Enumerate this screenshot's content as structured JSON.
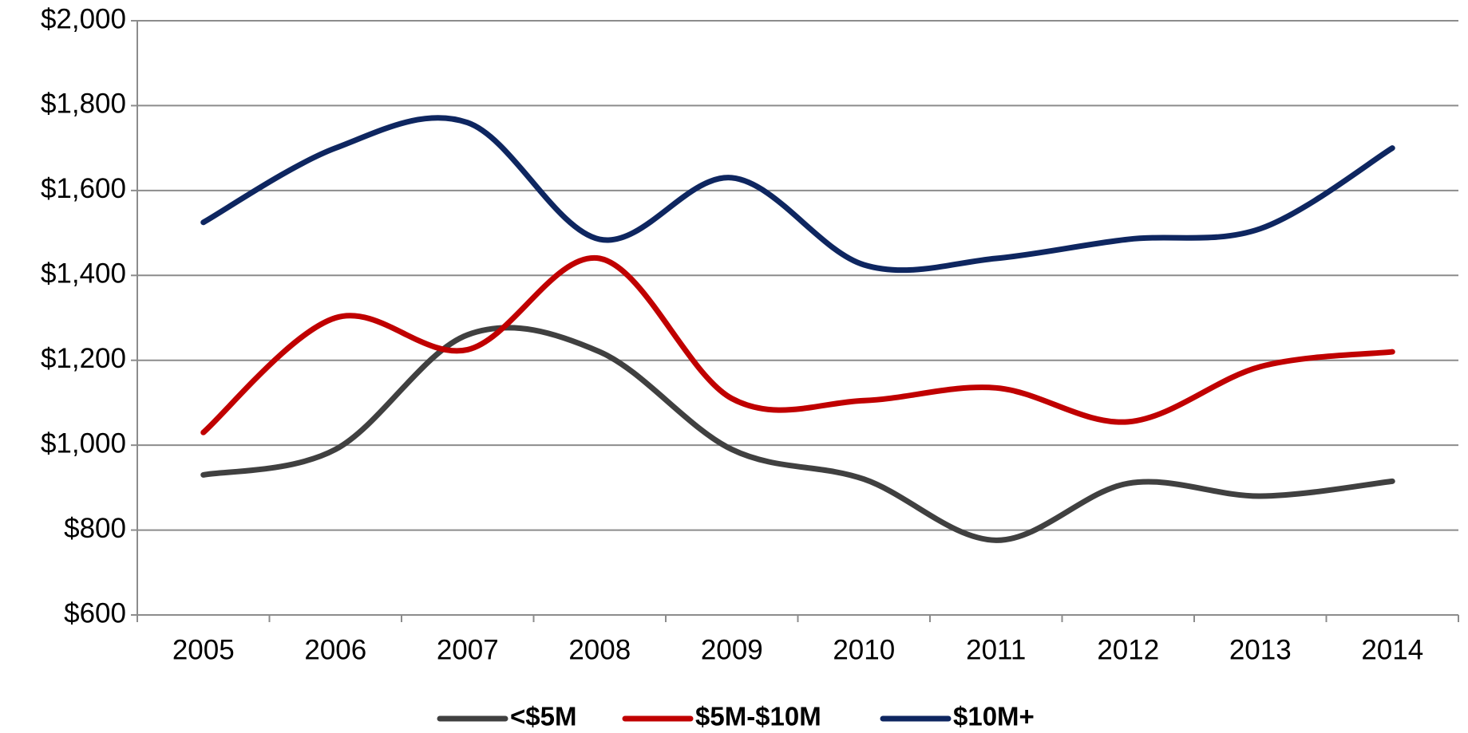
{
  "chart_data": {
    "type": "line",
    "categories": [
      "2005",
      "2006",
      "2007",
      "2008",
      "2009",
      "2010",
      "2011",
      "2012",
      "2013",
      "2014"
    ],
    "series": [
      {
        "name": "<$5M",
        "color": "#404040",
        "values": [
          930,
          990,
          1260,
          1220,
          990,
          920,
          776,
          910,
          880,
          915
        ]
      },
      {
        "name": "$5M-$10M",
        "color": "#c00000",
        "values": [
          1030,
          1300,
          1225,
          1440,
          1110,
          1105,
          1135,
          1055,
          1185,
          1220
        ]
      },
      {
        "name": "$10M+",
        "color": "#0e2660",
        "values": [
          1525,
          1700,
          1760,
          1485,
          1630,
          1425,
          1440,
          1485,
          1510,
          1700
        ]
      }
    ],
    "ylim": [
      600,
      2000
    ],
    "yticks": [
      {
        "value": 600,
        "label": "$600"
      },
      {
        "value": 800,
        "label": "$800"
      },
      {
        "value": 1000,
        "label": "$1,000"
      },
      {
        "value": 1200,
        "label": "$1,200"
      },
      {
        "value": 1400,
        "label": "$1,400"
      },
      {
        "value": 1600,
        "label": "$1,600"
      },
      {
        "value": 1800,
        "label": "$1,800"
      },
      {
        "value": 2000,
        "label": "$2,000"
      }
    ],
    "grid": true,
    "smooth": true,
    "legend": "bottom"
  }
}
